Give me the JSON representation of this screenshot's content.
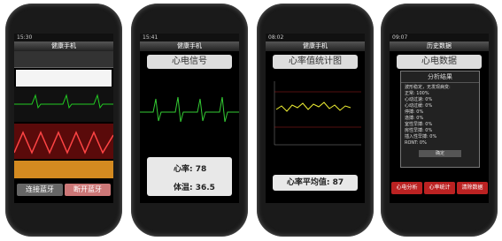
{
  "phones": [
    {
      "status_time": "15:30",
      "title": "健康手机",
      "buttons": [
        "连接蓝牙",
        "断开蓝牙"
      ]
    },
    {
      "status_time": "15:41",
      "title": "健康手机",
      "heading": "心电信号",
      "heart_rate": "心率: 78",
      "temperature": "体温: 36.5"
    },
    {
      "status_time": "08:02",
      "title": "健康手机",
      "heading": "心率值统计图",
      "average": "心率平均值: 87"
    },
    {
      "status_time": "09:07",
      "title": "历史数据",
      "heading": "心电数据",
      "dialog_title": "分析结果",
      "dialog_lines": [
        "波形稳定，无发现病变:",
        "正常: 100%",
        "心动过速: 0%",
        "心动过缓: 0%",
        "停搏: 0%",
        "逸搏: 0%",
        "室性早搏: 0%",
        "房性早搏: 0%",
        "插入性早搏: 0%",
        "RONT: 0%"
      ],
      "dialog_button": "确定",
      "buttons": [
        "心电分析",
        "心率统计",
        "清除数据"
      ]
    }
  ]
}
